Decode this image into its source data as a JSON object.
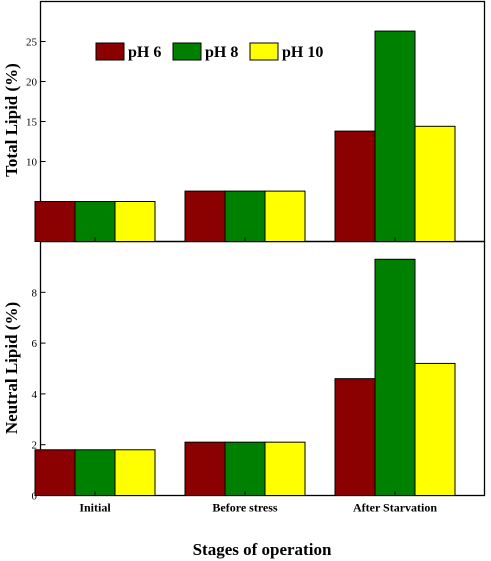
{
  "chart_data": [
    {
      "type": "bar",
      "panel": "top",
      "categories": [
        "Initial",
        "Before stress",
        "After Starvation"
      ],
      "series": [
        {
          "name": "pH 6",
          "color": "#8b0000",
          "values": [
            5.0,
            6.3,
            13.8
          ]
        },
        {
          "name": "pH 8",
          "color": "#008000",
          "values": [
            5.0,
            6.3,
            26.3
          ]
        },
        {
          "name": "pH 10",
          "color": "#ffff00",
          "values": [
            5.0,
            6.3,
            14.4
          ]
        }
      ],
      "ylabel": "Total Lipid (%)",
      "ylim": [
        0,
        30
      ],
      "yticks": [
        10,
        15,
        20,
        25
      ],
      "ytick_labels": [
        "10",
        "15",
        "20",
        "25"
      ],
      "grid": false,
      "legend_position": "top-left"
    },
    {
      "type": "bar",
      "panel": "bottom",
      "categories": [
        "Initial",
        "Before stress",
        "After Starvation"
      ],
      "category_labels": [
        "Initial",
        "Before stress",
        "After Starvation"
      ],
      "series": [
        {
          "name": "pH 6",
          "color": "#8b0000",
          "values": [
            1.8,
            2.1,
            4.6
          ]
        },
        {
          "name": "pH 8",
          "color": "#008000",
          "values": [
            1.8,
            2.1,
            9.3
          ]
        },
        {
          "name": "pH 10",
          "color": "#ffff00",
          "values": [
            1.8,
            2.1,
            5.2
          ]
        }
      ],
      "ylabel": "Neutral Lipid (%)",
      "xlabel": "Stages of operation",
      "ylim": [
        0,
        10
      ],
      "yticks": [
        0,
        2,
        4,
        6,
        8
      ],
      "ytick_labels": [
        "0",
        "2",
        "4",
        "6",
        "8"
      ],
      "grid": false
    }
  ],
  "legend": {
    "items": [
      {
        "label": "pH 6",
        "color": "#8b0000"
      },
      {
        "label": "pH 8",
        "color": "#008000"
      },
      {
        "label": "pH 10",
        "color": "#ffff00"
      }
    ]
  }
}
